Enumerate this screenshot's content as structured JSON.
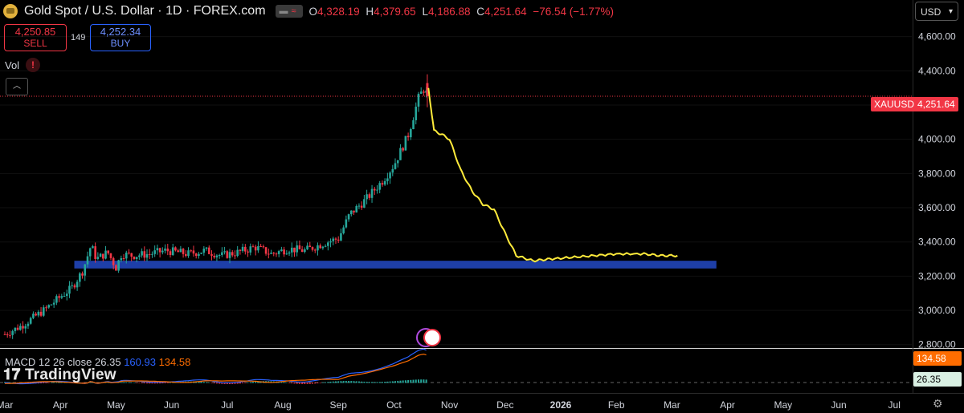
{
  "header": {
    "title": "Gold Spot / U.S. Dollar · 1D · FOREX.com",
    "open_label": "O",
    "open": "4,328.19",
    "high_label": "H",
    "high": "4,379.65",
    "low_label": "L",
    "low": "4,186.88",
    "close_label": "C",
    "close": "4,251.64",
    "change": "−76.54 (−1.77%)"
  },
  "trade": {
    "sell_price": "4,250.85",
    "sell_label": "SELL",
    "spread": "149",
    "buy_price": "4,252.34",
    "buy_label": "BUY"
  },
  "volume_label": "Vol",
  "currency": "USD",
  "price_tag": {
    "symbol": "XAUUSD",
    "value": "4,251.64"
  },
  "macd": {
    "label": "MACD 12 26 close",
    "hist": "26.35",
    "macd": "160.93",
    "signal": "134.58",
    "tag_signal": "134.58",
    "tag_hist": "26.35"
  },
  "watermark": "TradingView",
  "colors": {
    "up": "#26a69a",
    "down": "#f23645",
    "projection": "#ffeb3b",
    "zone": "#1e3fa8",
    "macd": "#2962ff",
    "signal": "#ff6d00"
  },
  "chart_data": {
    "type": "candlestick",
    "title": "Gold Spot / U.S. Dollar · 1D · FOREX.com",
    "y_ticks": [
      "4,600.00",
      "4,400.00",
      "4,200.00",
      "4,000.00",
      "3,800.00",
      "3,600.00",
      "3,400.00",
      "3,200.00",
      "3,000.00",
      "2,800.00"
    ],
    "ylim": [
      2780,
      4720
    ],
    "x_ticks": [
      "Mar",
      "Apr",
      "May",
      "Jun",
      "Jul",
      "Aug",
      "Sep",
      "Oct",
      "Nov",
      "Dec",
      "2026",
      "Feb",
      "Mar",
      "Apr",
      "May",
      "Jun",
      "Jul"
    ],
    "x_tick_months": [
      0,
      1,
      2,
      3,
      4,
      5,
      6,
      7,
      8,
      9,
      10,
      11,
      12,
      13,
      14,
      15,
      16
    ],
    "price_series_anchors": [
      [
        0.0,
        2860
      ],
      [
        0.3,
        2910
      ],
      [
        0.7,
        3000
      ],
      [
        1.0,
        3080
      ],
      [
        1.2,
        3130
      ],
      [
        1.4,
        3230
      ],
      [
        1.55,
        3380
      ],
      [
        1.65,
        3300
      ],
      [
        1.85,
        3340
      ],
      [
        2.0,
        3250
      ],
      [
        2.1,
        3330
      ],
      [
        2.3,
        3320
      ],
      [
        2.6,
        3330
      ],
      [
        2.9,
        3350
      ],
      [
        3.3,
        3330
      ],
      [
        3.6,
        3350
      ],
      [
        3.9,
        3320
      ],
      [
        4.2,
        3340
      ],
      [
        4.5,
        3370
      ],
      [
        4.8,
        3330
      ],
      [
        5.1,
        3360
      ],
      [
        5.4,
        3350
      ],
      [
        5.8,
        3400
      ],
      [
        6.0,
        3420
      ],
      [
        6.2,
        3560
      ],
      [
        6.5,
        3650
      ],
      [
        6.8,
        3760
      ],
      [
        7.0,
        3850
      ],
      [
        7.25,
        4020
      ],
      [
        7.45,
        4250
      ],
      [
        7.55,
        4300
      ],
      [
        7.6,
        4252
      ]
    ],
    "last_price": 4251.64,
    "projection_anchors": [
      [
        7.62,
        4300
      ],
      [
        7.72,
        4050
      ],
      [
        7.85,
        4030
      ],
      [
        8.0,
        4000
      ],
      [
        8.2,
        3820
      ],
      [
        8.4,
        3700
      ],
      [
        8.6,
        3620
      ],
      [
        8.8,
        3590
      ],
      [
        9.0,
        3450
      ],
      [
        9.2,
        3320
      ],
      [
        9.5,
        3290
      ],
      [
        9.8,
        3300
      ],
      [
        10.2,
        3310
      ],
      [
        10.6,
        3320
      ],
      [
        11.0,
        3330
      ],
      [
        11.5,
        3330
      ],
      [
        11.8,
        3320
      ],
      [
        12.1,
        3320
      ]
    ],
    "support_zone": {
      "from_month": 1.25,
      "to_month": 12.8,
      "low": 3245,
      "high": 3290
    },
    "macd_values": {
      "macd": 160.93,
      "signal": 134.58,
      "hist": 26.35
    }
  }
}
